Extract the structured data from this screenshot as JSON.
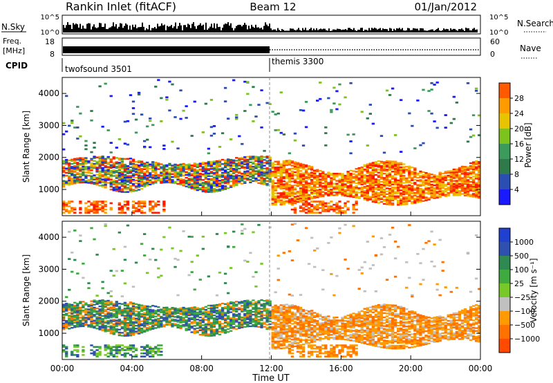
{
  "header": {
    "title": "Rankin Inlet (fitACF)",
    "beam": "Beam 12",
    "date": "01/Jan/2012"
  },
  "sky_panel": {
    "left_label": "N.Sky",
    "right_label": "N.Search",
    "ticks_left": [
      "10^5",
      "10^0"
    ],
    "ticks_right": [
      "10^5",
      "10^0"
    ]
  },
  "freq_panel": {
    "left_label_1": "Freq.",
    "left_label_2": "[MHz]",
    "left_ticks": [
      "18",
      "8"
    ],
    "right_label": "Nave",
    "right_ticks": [
      "60",
      "0"
    ]
  },
  "cpid": {
    "label": "CPID",
    "segments": [
      {
        "name": "twofsound 3501",
        "start_hour": 0
      },
      {
        "name": "themis 3300",
        "start_hour": 12
      }
    ]
  },
  "colors": {
    "power_scale": [
      "#1a1aff",
      "#2a4fb0",
      "#2f7a4a",
      "#3c9a5a",
      "#7ec21e",
      "#e8c400",
      "#ff9a00",
      "#ff5a00",
      "#ff1a00"
    ],
    "velocity_scale": [
      "#2040d0",
      "#3050b0",
      "#2e8a50",
      "#3faa40",
      "#78c828",
      "#c0c0c0",
      "#ff9a00",
      "#ff7200",
      "#ff4a00",
      "#ff1a00"
    ],
    "no_data": "#ffffff"
  },
  "chart_data": [
    {
      "type": "heatmap",
      "title": "",
      "xlabel": "",
      "ylabel": "Slant Range [km]",
      "x_range_hours": [
        0,
        24
      ],
      "ylim": [
        180,
        4500
      ],
      "x_tick_labels": [
        "00:00",
        "04:00",
        "08:00",
        "12:00",
        "16:00",
        "20:00",
        "00:00"
      ],
      "y_tick_labels": [
        "1000",
        "2000",
        "3000",
        "4000"
      ],
      "y_tick_values": [
        1000,
        2000,
        3000,
        4000
      ],
      "colorbar_label": "Power [dB]",
      "colorbar_ticks": [
        "4",
        "8",
        "12",
        "16",
        "20",
        "24",
        "28"
      ],
      "colorbar_range": [
        0,
        32
      ],
      "bands": [
        {
          "hours": [
            0,
            12
          ],
          "range_km": [
            1100,
            2000
          ],
          "dominant": "mixed green/orange/red"
        },
        {
          "hours": [
            12,
            24
          ],
          "range_km": [
            700,
            1600
          ],
          "dominant": "orange/red"
        },
        {
          "hours": [
            13,
            16
          ],
          "range_km": [
            350,
            650
          ],
          "dominant": "red"
        }
      ]
    },
    {
      "type": "heatmap",
      "title": "",
      "xlabel": "Time UT",
      "ylabel": "Slant Range [km]",
      "x_range_hours": [
        0,
        24
      ],
      "ylim": [
        180,
        4500
      ],
      "x_tick_labels": [
        "00:00",
        "04:00",
        "08:00",
        "12:00",
        "16:00",
        "20:00",
        "00:00"
      ],
      "y_tick_labels": [
        "1000",
        "2000",
        "3000",
        "4000"
      ],
      "y_tick_values": [
        1000,
        2000,
        3000,
        4000
      ],
      "colorbar_label": "Velocity [m s⁻¹]",
      "colorbar_ticks": [
        "1000",
        "500",
        "100",
        "25",
        "−25",
        "−100",
        "−500",
        "−1000"
      ],
      "bands": [
        {
          "hours": [
            0,
            12
          ],
          "range_km": [
            900,
            1900
          ],
          "dominant": "green/blue"
        },
        {
          "hours": [
            12,
            24
          ],
          "range_km": [
            600,
            1900
          ],
          "dominant": "orange"
        }
      ]
    }
  ]
}
